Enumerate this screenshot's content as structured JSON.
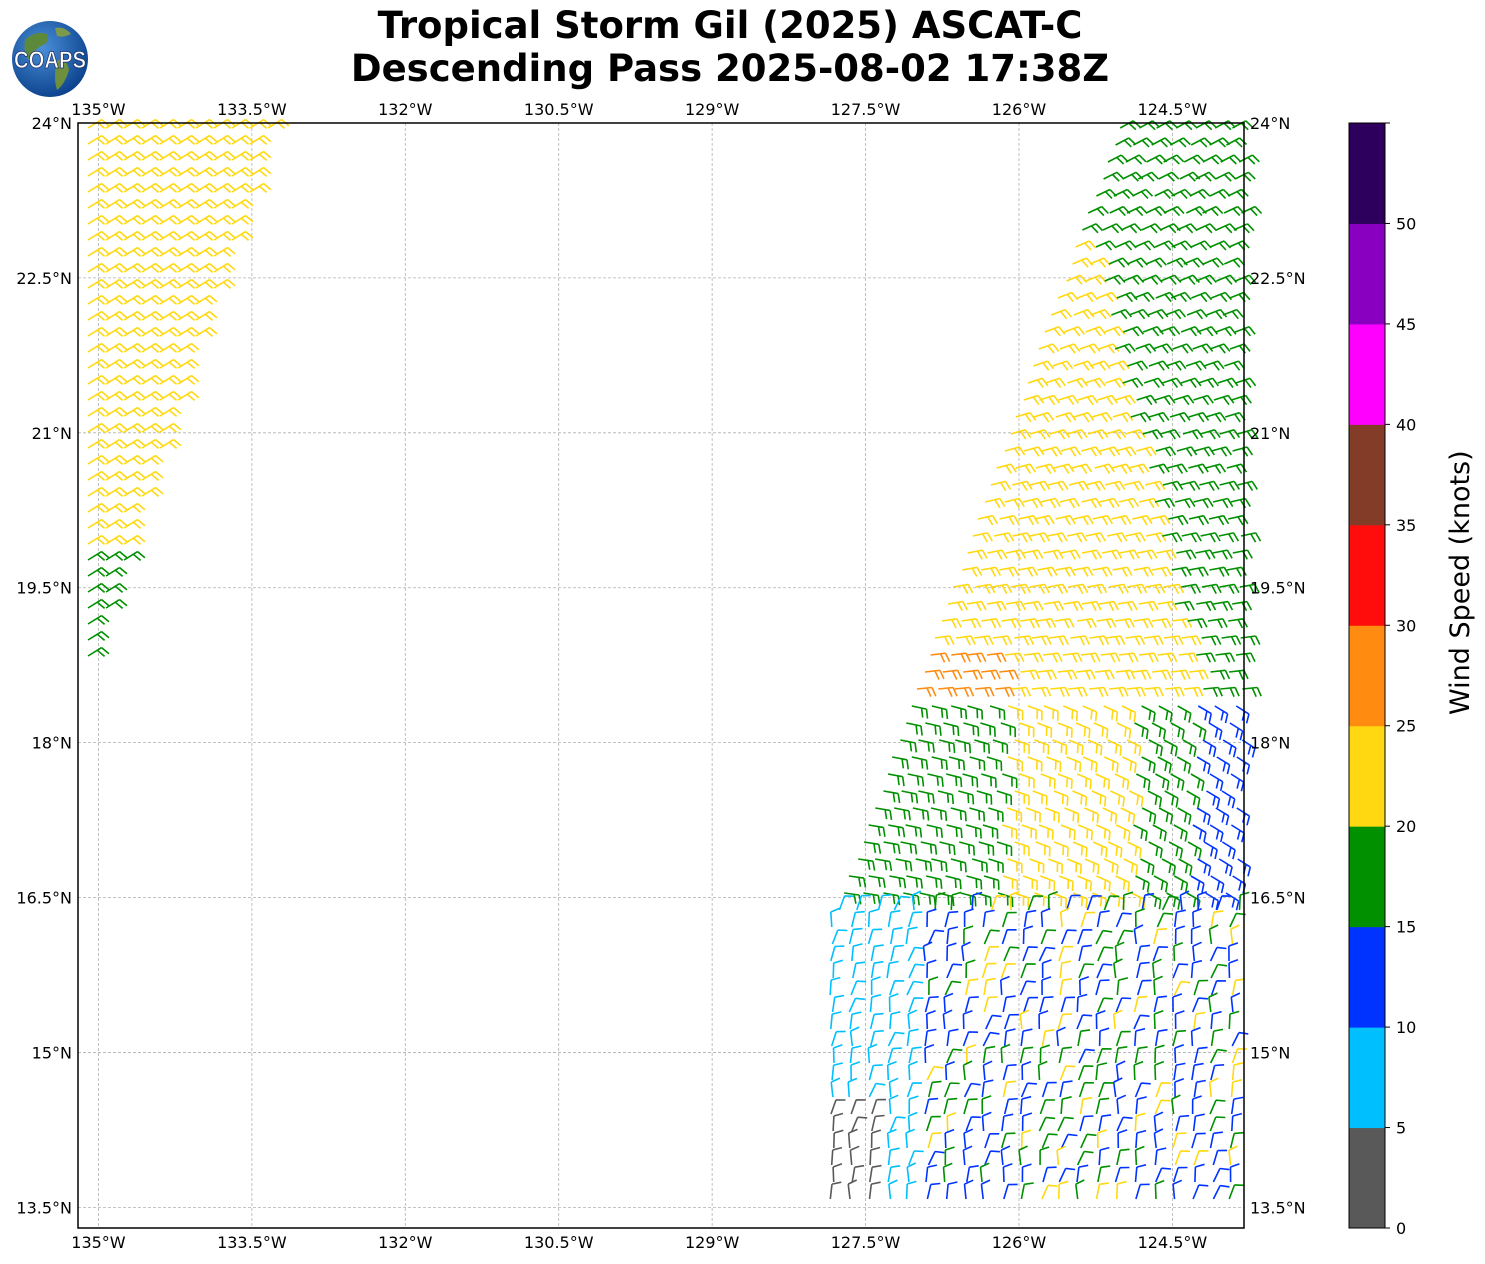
{
  "title": {
    "line1": "Tropical Storm Gil (2025) ASCAT-C",
    "line2": "Descending Pass 2025-08-02 17:38Z"
  },
  "logo": {
    "text": "COAPS",
    "icon": "globe-logo-icon"
  },
  "map": {
    "lon_range": [
      -135.2,
      -123.8
    ],
    "lat_range": [
      13.3,
      24.0
    ],
    "grid": true,
    "lon_ticks": [
      -135,
      -133.5,
      -132,
      -130.5,
      -129,
      -127.5,
      -126,
      -124.5
    ],
    "lon_tick_labels": [
      "135°W",
      "133.5°W",
      "132°W",
      "130.5°W",
      "129°W",
      "127.5°W",
      "126°W",
      "124.5°W"
    ],
    "lat_ticks": [
      24,
      22.5,
      21,
      19.5,
      18,
      16.5,
      15,
      13.5
    ],
    "lat_tick_labels": [
      "24°N",
      "22.5°N",
      "21°N",
      "19.5°N",
      "18°N",
      "16.5°N",
      "15°N",
      "13.5°N"
    ]
  },
  "colorbar": {
    "label": "Wind Speed (knots)",
    "ticks": [
      0,
      5,
      10,
      15,
      20,
      25,
      30,
      35,
      40,
      45,
      50
    ],
    "tick_labels": [
      "0",
      "5",
      "10",
      "15",
      "20",
      "25",
      "30",
      "35",
      "40",
      "45",
      "50"
    ],
    "colors": [
      "#595959",
      "#00bfff",
      "#0033ff",
      "#009000",
      "#ffd812",
      "#ff8c10",
      "#ff0d0d",
      "#833c27",
      "#ff00ff",
      "#8a00c0",
      "#2e005e"
    ]
  },
  "wind_swaths": [
    {
      "name": "west-swath",
      "colors_by_region": [
        "#ffd812",
        "#009000"
      ]
    },
    {
      "name": "east-swath",
      "colors_by_region": [
        "#009000",
        "#ffd812",
        "#ff8c10",
        "#0033ff",
        "#00bfff",
        "#595959"
      ]
    }
  ]
}
